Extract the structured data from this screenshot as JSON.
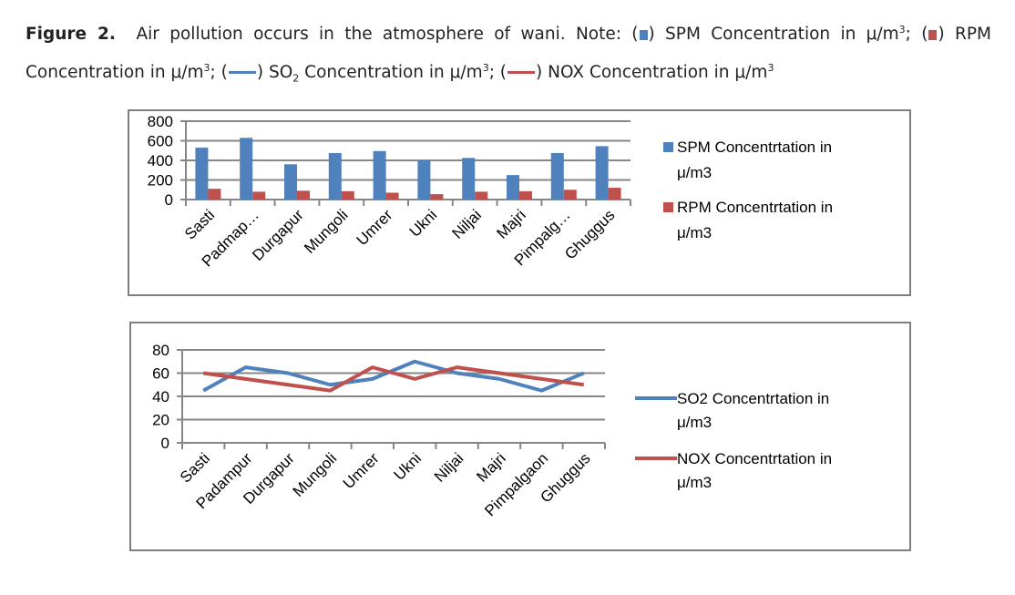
{
  "caption": {
    "label": "Figure 2.",
    "text1": "Air pollution occurs in the atmosphere of wani. Note: (",
    "text2": ") SPM Concentration in μ/m",
    "text3": "; (",
    "text4": ") RPM",
    "text5": "Concentration in μ/m",
    "text6": "; (",
    "text7": ") SO",
    "text8": " Concentration in μ/m",
    "text9": "; (",
    "text10": ") NOX Concentration in μ/m",
    "sup": "3",
    "sub": "2"
  },
  "colors": {
    "blue": "#4f81bd",
    "red": "#c0504d",
    "grid": "#868686",
    "border": "#7f7f7f"
  },
  "chart_data": [
    {
      "type": "bar",
      "title": "",
      "xlabel": "",
      "ylabel": "",
      "categories": [
        "Sasti",
        "Padmap…",
        "Durgapur",
        "Mungoli",
        "Umrer",
        "Ukni",
        "Niljai",
        "Majri",
        "Pimpalg…",
        "Ghuggus"
      ],
      "series": [
        {
          "name": "SPM Concentrtation in μ/m3",
          "color": "#4f81bd",
          "values": [
            530,
            630,
            360,
            475,
            495,
            400,
            425,
            250,
            475,
            545
          ]
        },
        {
          "name": "RPM  Concentrtation in μ/m3",
          "color": "#c0504d",
          "values": [
            110,
            80,
            90,
            85,
            70,
            55,
            80,
            85,
            100,
            120
          ]
        }
      ],
      "ylim": [
        0,
        800
      ],
      "yticks": [
        0,
        200,
        400,
        600,
        800
      ],
      "grid": true,
      "legend": "right"
    },
    {
      "type": "line",
      "title": "",
      "xlabel": "",
      "ylabel": "",
      "categories": [
        "Sasti",
        "Padampur",
        "Durgapur",
        "Mungoli",
        "Umrer",
        "Ukni",
        "Niljai",
        "Majri",
        "Pimpalgaon",
        "Ghuggus"
      ],
      "series": [
        {
          "name": "SO2  Concentrtation in μ/m3",
          "color": "#4f81bd",
          "values": [
            45,
            65,
            60,
            50,
            55,
            70,
            60,
            55,
            45,
            60
          ]
        },
        {
          "name": "NOX  Concentrtation in μ/m3",
          "color": "#c0504d",
          "values": [
            60,
            55,
            50,
            45,
            65,
            55,
            65,
            60,
            55,
            50
          ]
        }
      ],
      "ylim": [
        0,
        80
      ],
      "yticks": [
        0,
        20,
        40,
        60,
        80
      ],
      "grid": true,
      "legend": "right"
    }
  ]
}
